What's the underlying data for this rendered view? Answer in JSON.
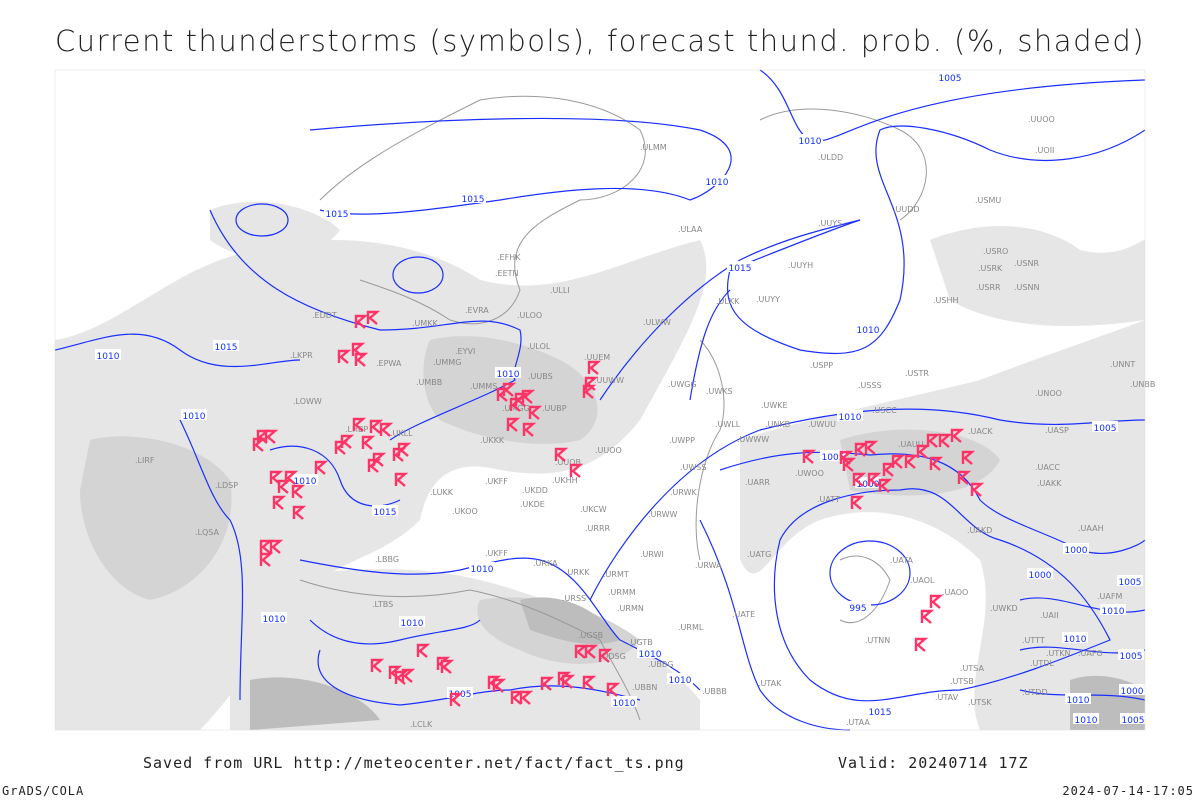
{
  "title": "Current thunderstorms (symbols), forecast thund. prob. (%, shaded)",
  "footer": {
    "saved_from": "Saved from URL http://meteocenter.net/fact/fact_ts.png",
    "valid": "Valid: 20240714 17Z",
    "software": "GrADS/COLA",
    "generated": "2024-07-14-17:05"
  },
  "colors": {
    "isobar": "#1a2fff",
    "thunderstorm_symbol": "#ff3366",
    "probability_low": "#e4e4e4",
    "probability_mid": "#d0d0d0",
    "probability_high": "#b8b8b8",
    "coastline": "#999999",
    "station_label": "#888888"
  },
  "legend": {
    "symbol": "thunderstorm-symbol",
    "shading": "thunderstorm probability (%)"
  },
  "isobar_labels": [
    "1005",
    "1010",
    "1015",
    "1010",
    "1015",
    "1015",
    "1010",
    "1010",
    "1015",
    "1010",
    "1015",
    "1010",
    "1005",
    "1000",
    "995",
    "1000",
    "1005",
    "1010",
    "1010",
    "1010",
    "1010",
    "1005",
    "1010",
    "1010",
    "1010",
    "1005",
    "1000",
    "1010",
    "1010",
    "1005",
    "1015",
    "1010",
    "1010",
    "1000",
    "1005",
    "1010"
  ],
  "stations": [
    "UUOO",
    "UOII",
    "ULMM",
    "ULDD",
    "UUDD",
    "USMU",
    "UUYS",
    "ULAA",
    "UUYH",
    "USRO",
    "USRK",
    "USNR",
    "USRR",
    "USNN",
    "ULKK",
    "UUYY",
    "USHH",
    "EFHK",
    "EETN",
    "ULLI",
    "ULOO",
    "ULWW",
    "EVRA",
    "EDDT",
    "UMKK",
    "EPWA",
    "UMMG",
    "EYVI",
    "ULOL",
    "UUEM",
    "UUWW",
    "LKPR",
    "UMBB",
    "UMMS",
    "UUBS",
    "UUBP",
    "UMGG",
    "LOWW",
    "UWGG",
    "UWKS",
    "UWKE",
    "UWWW",
    "UWPP",
    "UWUU",
    "UWLL",
    "USSS",
    "USPP",
    "USTR",
    "UNOO",
    "UNBB",
    "UNNT",
    "USCC",
    "UASP",
    "UACK",
    "UACC",
    "UAKK",
    "UAUU",
    "UUOO",
    "UUOB",
    "UKHH",
    "UKDD",
    "UKKK",
    "UKFF",
    "LHBP",
    "UKLL",
    "LUKK",
    "UKOO",
    "UKDE",
    "UKCW",
    "URRR",
    "URWW",
    "UWSS",
    "URWK",
    "URWI",
    "URWA",
    "URMT",
    "URMM",
    "URMN",
    "URML",
    "UBBB",
    "UGTB",
    "UGSB",
    "UDSG",
    "UBBN",
    "UBBG",
    "URSS",
    "UKFF",
    "URKA",
    "URKK",
    "LBBG",
    "LTBS",
    "LCLK",
    "UARR",
    "UWOO",
    "UATT",
    "UATG",
    "UATE",
    "UATA",
    "UAOL",
    "UAOO",
    "UAKD",
    "UAAH",
    "UAFM",
    "UTNN",
    "UTAK",
    "UTAA",
    "UTSA",
    "UTSB",
    "UTAV",
    "UTSK",
    "UTDD",
    "UTDL",
    "UTTT",
    "UTKN",
    "UAFO",
    "UAII",
    "LIRF",
    "LDSP",
    "LQSA",
    "UNKB",
    "UWKD"
  ]
}
